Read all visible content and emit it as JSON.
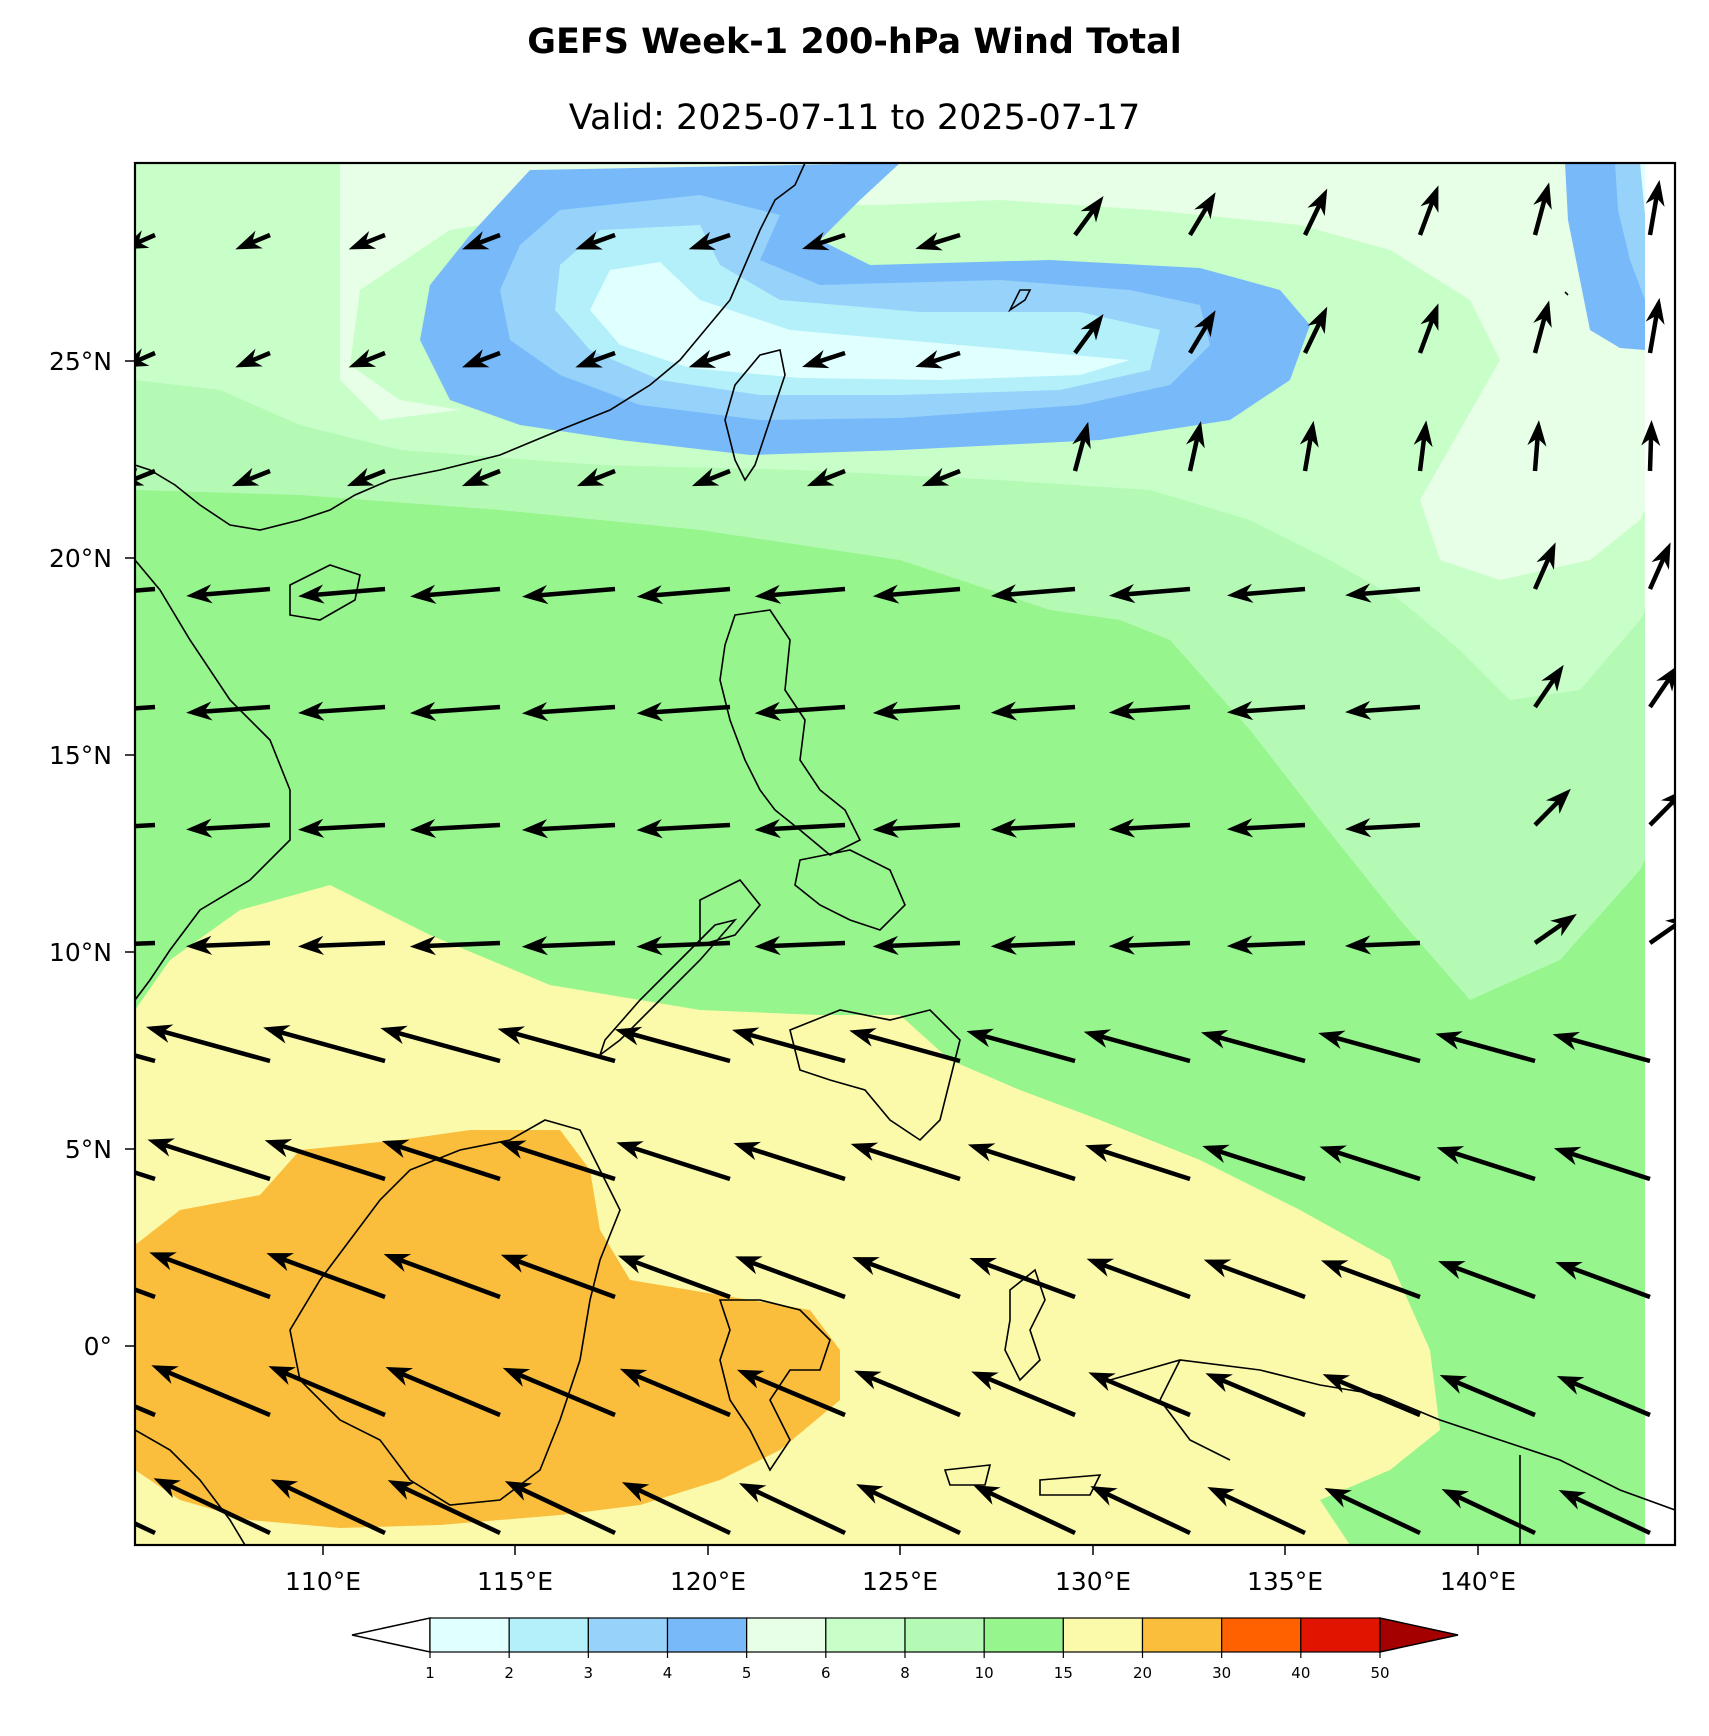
{
  "title": "GEFS Week-1 200-hPa Wind Total",
  "subtitle": "Valid: 2025-07-11 to 2025-07-17",
  "map": {
    "lon_range": [
      105.5,
      145.5
    ],
    "lat_range": [
      -5,
      30
    ],
    "lon_ticks": [
      "110°E",
      "115°E",
      "120°E",
      "125°E",
      "130°E",
      "135°E",
      "140°E"
    ],
    "lat_ticks": [
      "25°N",
      "20°N",
      "15°N",
      "10°N",
      "5°N",
      "0°"
    ],
    "coastlines": true,
    "vectors": "wind arrows (200-hPa total wind)"
  },
  "colorbar": {
    "levels": [
      "1",
      "2",
      "3",
      "4",
      "5",
      "6",
      "8",
      "10",
      "15",
      "20",
      "30",
      "40",
      "50"
    ],
    "colors": [
      "#e0ffff",
      "#b3f0fa",
      "#96d2fa",
      "#78b9fa",
      "#e6ffe6",
      "#c8ffc8",
      "#b4fab4",
      "#96f58c",
      "#fafaaa",
      "#fabe3c",
      "#ff6000",
      "#e11400",
      "#a50000"
    ],
    "under_color": "#ffffff",
    "over_color": "#a50000",
    "extend": "both"
  },
  "colors": {
    "weak_blue": "#78b9fa",
    "light_blue": "#96d2fa",
    "pale_blue": "#b3f0fa",
    "ice": "#e0ffff",
    "mint": "#e6ffe6",
    "pale_green": "#c8ffc8",
    "light_green": "#b4fab4",
    "green": "#96f58c",
    "yellow": "#fafaaa",
    "orange": "#fabe3c"
  }
}
